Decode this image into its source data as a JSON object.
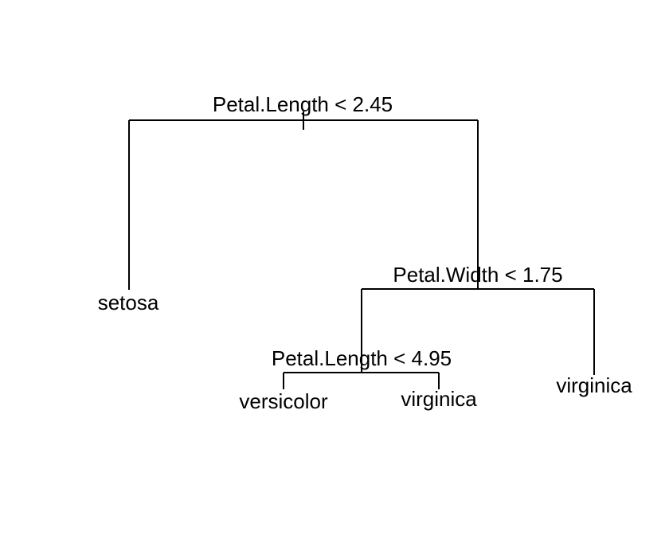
{
  "tree": {
    "root": {
      "label": "Petal.Length < 2.45",
      "left": {
        "leaf": "setosa"
      },
      "right": {
        "label": "Petal.Width < 1.75",
        "left": {
          "label": "Petal.Length < 4.95",
          "left": {
            "leaf": "versicolor"
          },
          "right": {
            "leaf": "virginica"
          }
        },
        "right": {
          "leaf": "virginica"
        }
      }
    }
  }
}
